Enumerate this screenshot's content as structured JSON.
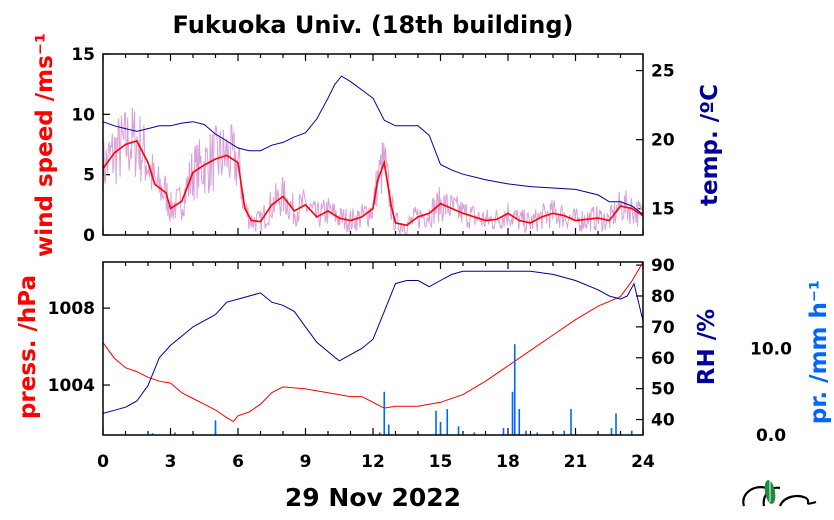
{
  "chart_data": [
    {
      "type": "line",
      "title": "Fukuoka Univ. (18th building)",
      "xlim": [
        0,
        24
      ],
      "x_ticks": [
        "0",
        "3",
        "6",
        "9",
        "12",
        "15",
        "18",
        "21",
        "24"
      ],
      "left_axis": {
        "label": "wind speed /ms⁻¹",
        "color": "#ff0000",
        "ylim": [
          0,
          15
        ],
        "ticks": [
          "0",
          "5",
          "10",
          "15"
        ]
      },
      "right_axis": {
        "label": "temp. /ºC",
        "color": "#000099",
        "ylim": [
          13.1,
          26.2
        ],
        "ticks": [
          "15",
          "20",
          "25"
        ]
      },
      "series": [
        {
          "name": "wind speed (10 min mean)",
          "axis": "left",
          "color": "#ff0000",
          "x": [
            0,
            0.5,
            1,
            1.5,
            2,
            2.3,
            2.8,
            3,
            3.5,
            4,
            4.5,
            5,
            5.5,
            6,
            6.3,
            6.6,
            7,
            7.5,
            8,
            8.5,
            9,
            9.5,
            10,
            10.5,
            11,
            11.5,
            12,
            12.2,
            12.5,
            12.8,
            13,
            13.5,
            14,
            14.5,
            15,
            15.5,
            16,
            16.5,
            17,
            17.5,
            18,
            18.5,
            19,
            19.5,
            20,
            20.5,
            21,
            21.5,
            22,
            22.5,
            23,
            23.5,
            24
          ],
          "y": [
            5.5,
            6.8,
            7.5,
            7.8,
            6.0,
            4.2,
            3.5,
            2.2,
            2.8,
            5.2,
            5.8,
            6.3,
            6.6,
            6.0,
            2.2,
            1.2,
            1.1,
            2.5,
            3.2,
            2.0,
            2.5,
            1.5,
            2.0,
            1.4,
            1.2,
            1.5,
            2.2,
            4.5,
            6.0,
            2.5,
            1.0,
            0.8,
            1.5,
            1.8,
            2.6,
            2.2,
            1.8,
            1.5,
            1.2,
            1.3,
            1.8,
            1.2,
            1.0,
            1.5,
            1.8,
            1.6,
            1.2,
            1.3,
            1.4,
            1.2,
            2.4,
            2.2,
            1.6
          ]
        },
        {
          "name": "temperature",
          "axis": "right",
          "color": "#000099",
          "x": [
            0,
            0.5,
            1,
            1.5,
            2,
            2.5,
            3,
            3.5,
            4,
            4.5,
            5,
            5.5,
            6,
            6.5,
            7,
            7.5,
            8,
            8.5,
            9,
            9.5,
            10,
            10.3,
            10.6,
            11,
            11.5,
            12,
            12.5,
            13,
            13.5,
            14,
            14.5,
            15,
            15.5,
            16,
            17,
            18,
            19,
            20,
            21,
            22,
            22.5,
            23,
            23.5,
            24
          ],
          "y": [
            21.3,
            21.0,
            20.8,
            20.6,
            20.8,
            21.0,
            21.0,
            21.2,
            21.3,
            21.1,
            20.4,
            19.9,
            19.4,
            19.2,
            19.2,
            19.6,
            19.8,
            20.2,
            20.5,
            21.5,
            23.0,
            24.0,
            24.6,
            24.2,
            23.6,
            23.0,
            21.4,
            21.0,
            21.0,
            21.0,
            20.3,
            18.2,
            17.8,
            17.5,
            17.1,
            16.8,
            16.6,
            16.5,
            16.4,
            16.0,
            15.5,
            15.5,
            15.2,
            14.6
          ]
        }
      ]
    },
    {
      "type": "line",
      "xlim": [
        0,
        24
      ],
      "x_ticks": [
        "0",
        "3",
        "6",
        "9",
        "12",
        "15",
        "18",
        "21",
        "24"
      ],
      "xlabel": "29 Nov 2022",
      "left_axis": {
        "label": "press. /hPa",
        "color": "#ff0000",
        "ylim": [
          1001.4,
          1010.4
        ],
        "ticks": [
          "1004",
          "1008"
        ]
      },
      "right_axis": {
        "label": "RH /%",
        "color": "#000099",
        "ylim": [
          35,
          91
        ],
        "ticks": [
          "40",
          "50",
          "60",
          "70",
          "80",
          "90"
        ]
      },
      "precip_axis": {
        "label": "pr. /mm h⁻¹",
        "color": "#0066ff",
        "ylim": [
          0,
          20
        ],
        "ticks": [
          "0.0",
          "10.0"
        ]
      },
      "series": [
        {
          "name": "pressure",
          "axis": "left",
          "color": "#ff0000",
          "x": [
            0,
            0.5,
            1,
            1.5,
            2,
            2.5,
            3,
            3.5,
            4,
            4.5,
            5,
            5.5,
            5.8,
            6,
            6.5,
            7,
            7.5,
            8,
            9,
            10,
            11,
            11.5,
            12,
            12.5,
            13,
            14,
            15,
            16,
            17,
            18,
            19,
            20,
            21,
            22,
            23,
            23.5,
            24
          ],
          "y": [
            1006.2,
            1005.4,
            1004.9,
            1004.7,
            1004.4,
            1004.2,
            1004.1,
            1003.6,
            1003.3,
            1003.0,
            1002.7,
            1002.3,
            1002.1,
            1002.4,
            1002.6,
            1003.0,
            1003.6,
            1003.9,
            1003.8,
            1003.6,
            1003.4,
            1003.4,
            1003.1,
            1002.8,
            1002.9,
            1002.9,
            1003.1,
            1003.5,
            1004.2,
            1005.0,
            1005.8,
            1006.6,
            1007.4,
            1008.1,
            1008.6,
            1009.4,
            1010.4
          ]
        },
        {
          "name": "relative humidity",
          "axis": "right",
          "color": "#000099",
          "x": [
            0,
            0.5,
            1,
            1.5,
            2,
            2.5,
            3,
            3.5,
            4,
            4.5,
            5,
            5.5,
            6,
            6.5,
            7,
            7.5,
            8,
            8.5,
            9,
            9.5,
            10,
            10.5,
            11,
            11.5,
            12,
            12.5,
            13,
            13.5,
            14,
            14.5,
            15,
            15.5,
            16,
            17,
            18,
            19,
            20,
            21,
            22,
            22.5,
            23,
            23.3,
            23.6,
            24
          ],
          "y": [
            42,
            43,
            44,
            46,
            51,
            60,
            64,
            67,
            70,
            72,
            74,
            78,
            79,
            80,
            81,
            78,
            77,
            75,
            70,
            65,
            62,
            59,
            61,
            63,
            66,
            75,
            84,
            85,
            85,
            83,
            85,
            87,
            88,
            88,
            88,
            88,
            87,
            85,
            82,
            80,
            79,
            80,
            84,
            72
          ]
        },
        {
          "name": "precipitation",
          "axis": "precip",
          "color": "#0066ff",
          "kind": "bars",
          "x": [
            2.0,
            2.2,
            3.2,
            5.0,
            12.3,
            12.5,
            12.7,
            14.8,
            15.0,
            15.3,
            15.8,
            16.5,
            17.8,
            18.2,
            18.3,
            18.5,
            18.8,
            19.3,
            20.5,
            20.8,
            22.6,
            22.8,
            23.5
          ],
          "y": [
            0.3,
            0.2,
            0.3,
            1.7,
            0.3,
            5.0,
            1.2,
            2.8,
            1.5,
            3.0,
            1.0,
            0.3,
            0.8,
            5.0,
            10.5,
            3.0,
            0.5,
            0.3,
            0.5,
            3.0,
            0.8,
            2.5,
            0.5
          ]
        }
      ]
    }
  ]
}
